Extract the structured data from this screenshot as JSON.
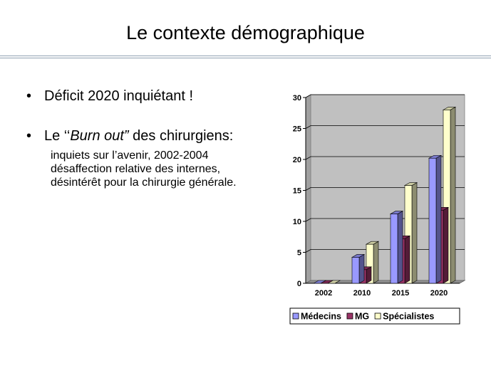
{
  "slide": {
    "title": "Le contexte démographique"
  },
  "bullets": {
    "b1": "Déficit 2020 inquiétant !",
    "b2_pre": "Le ‘‘",
    "b2_em": "Burn out”",
    "b2_post": " des chirurgiens:",
    "sub": [
      "inquiets sur l’avenir, 2002-2004",
      "désaffection relative des internes,",
      "désintérêt pour la chirurgie générale."
    ]
  },
  "chart_data": {
    "type": "bar",
    "style": "3d clustered columns",
    "categories": [
      "2002",
      "2010",
      "2015",
      "2020"
    ],
    "series": [
      {
        "name": "Médecins",
        "values": [
          0,
          4.2,
          11.2,
          20.2
        ],
        "color": "#9999ff"
      },
      {
        "name": "MG",
        "values": [
          0,
          2.2,
          7.2,
          11.8
        ],
        "color": "#993366"
      },
      {
        "name": "Spécialistes",
        "values": [
          0,
          6.3,
          15.8,
          28
        ],
        "color": "#ffffcc"
      }
    ],
    "ylim": [
      0,
      30
    ],
    "yticks": [
      "0",
      "5",
      "10",
      "15",
      "20",
      "25",
      "30"
    ],
    "grid": true,
    "legend": "bottom",
    "title": "",
    "xlabel": "",
    "ylabel": ""
  }
}
